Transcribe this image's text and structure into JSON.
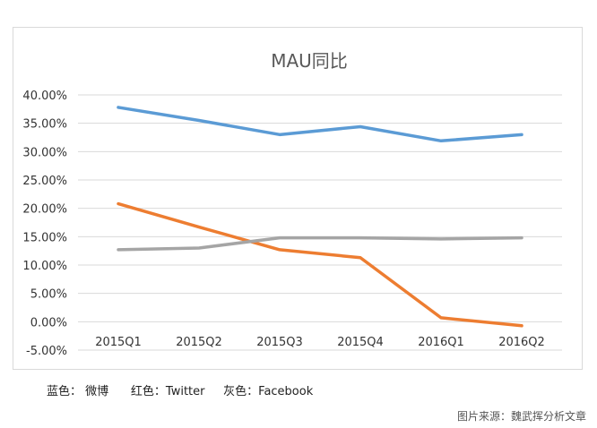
{
  "legend_note": "蓝色： 微博      红色：Twitter     灰色：Facebook",
  "source": "图片来源：魏武挥分析文章",
  "colors": {
    "weibo": "#5b9bd5",
    "twitter": "#ed7d31",
    "facebook": "#a5a5a5",
    "grid": "#d9d9d9",
    "axis_text": "#333333",
    "title": "#595959"
  },
  "chart_data": {
    "type": "line",
    "title": "MAU同比",
    "xlabel": "",
    "ylabel": "",
    "categories": [
      "2015Q1",
      "2015Q2",
      "2015Q3",
      "2015Q4",
      "2016Q1",
      "2016Q2"
    ],
    "ylim": [
      -5,
      40
    ],
    "yticks": [
      40,
      35,
      30,
      25,
      20,
      15,
      10,
      5,
      0,
      -5
    ],
    "ytick_labels": [
      "40.00%",
      "35.00%",
      "30.00%",
      "25.00%",
      "20.00%",
      "15.00%",
      "10.00%",
      "5.00%",
      "0.00%",
      "-5.00%"
    ],
    "grid": true,
    "series": [
      {
        "key": "weibo",
        "values": [
          37.8,
          35.5,
          33.0,
          34.4,
          31.9,
          33.0
        ]
      },
      {
        "key": "twitter",
        "values": [
          20.8,
          16.7,
          12.7,
          11.3,
          0.7,
          -0.7
        ]
      },
      {
        "key": "facebook",
        "values": [
          12.7,
          13.0,
          14.8,
          14.8,
          14.6,
          14.8
        ]
      }
    ]
  }
}
